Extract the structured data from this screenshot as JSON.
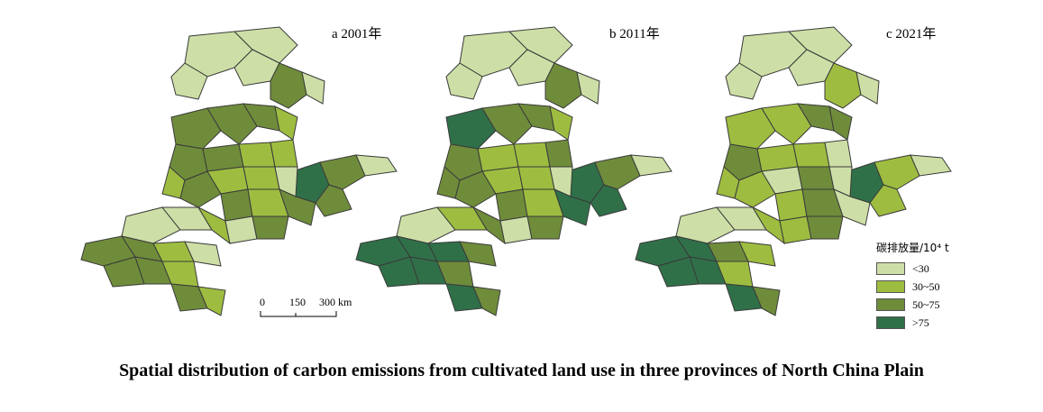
{
  "panels": [
    {
      "label": "a 2001年"
    },
    {
      "label": "b 2011年"
    },
    {
      "label": "c 2021年"
    }
  ],
  "legend": {
    "title": "碳排放量/10⁴ t",
    "items": [
      {
        "label": "<30",
        "color": "#cddfa6"
      },
      {
        "label": "30~50",
        "color": "#9ebd40"
      },
      {
        "label": "50~75",
        "color": "#6f8c3b"
      },
      {
        "label": ">75",
        "color": "#2f7049"
      }
    ]
  },
  "scale": {
    "ticks": [
      "0",
      "150",
      "300 km"
    ]
  },
  "caption": "Spatial distribution of carbon emissions from cultivated land use in three provinces of North China Plain",
  "colors": {
    "border": "#3a3a3a"
  }
}
